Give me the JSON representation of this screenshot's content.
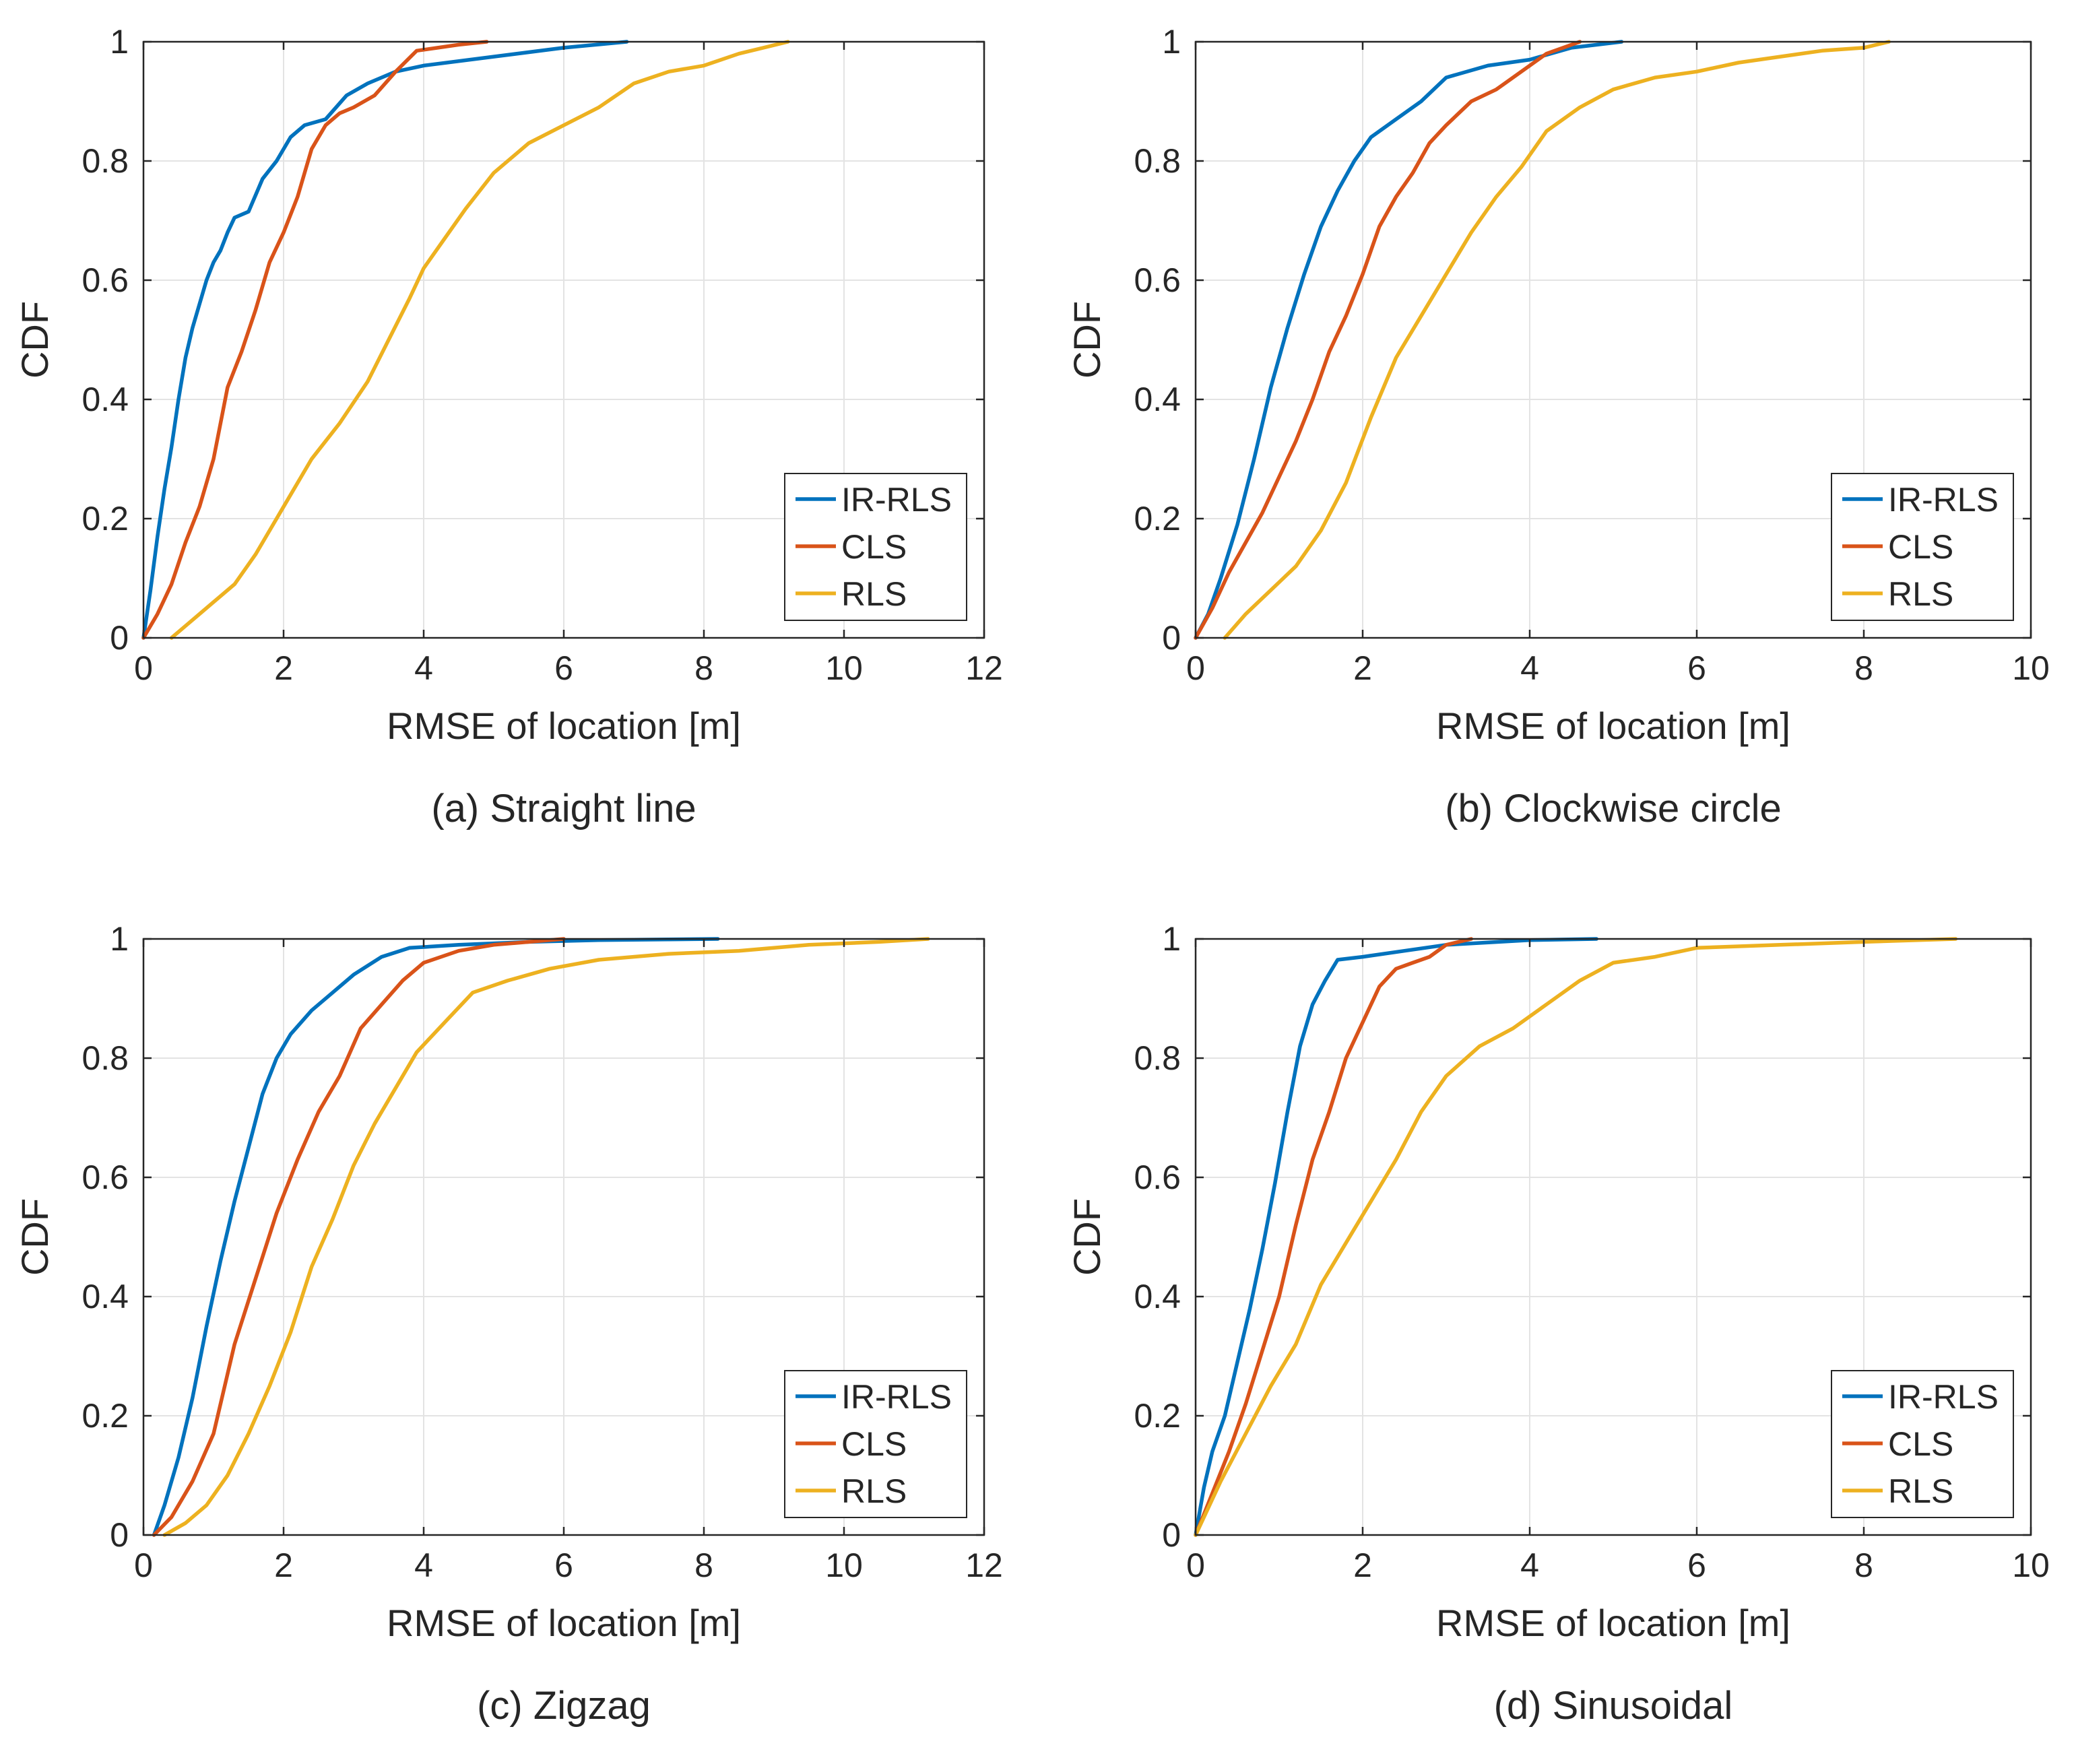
{
  "chart_data": [
    {
      "type": "line",
      "caption": "(a) Straight line",
      "xlabel": "RMSE of location [m]",
      "ylabel": "CDF",
      "xlim": [
        0,
        12
      ],
      "ylim": [
        0,
        1
      ],
      "xticks": [
        "0",
        "2",
        "4",
        "6",
        "8",
        "10",
        "12"
      ],
      "yticks": [
        "0",
        "0.2",
        "0.4",
        "0.6",
        "0.8",
        "1"
      ],
      "grid": true,
      "legend_position": "bottom-right",
      "series": [
        {
          "name": "IR-RLS",
          "color": "#0072BD",
          "x": [
            0,
            0.1,
            0.2,
            0.3,
            0.4,
            0.5,
            0.6,
            0.7,
            0.8,
            0.9,
            1.0,
            1.1,
            1.2,
            1.3,
            1.5,
            1.7,
            1.9,
            2.1,
            2.3,
            2.6,
            2.9,
            3.2,
            3.6,
            4.0,
            5.0,
            6.0,
            6.9
          ],
          "y": [
            0,
            0.08,
            0.17,
            0.25,
            0.32,
            0.4,
            0.47,
            0.52,
            0.56,
            0.6,
            0.63,
            0.65,
            0.68,
            0.705,
            0.715,
            0.77,
            0.8,
            0.84,
            0.86,
            0.87,
            0.91,
            0.93,
            0.95,
            0.96,
            0.975,
            0.99,
            1.0
          ]
        },
        {
          "name": "CLS",
          "color": "#D95319",
          "x": [
            0,
            0.2,
            0.4,
            0.6,
            0.8,
            1.0,
            1.2,
            1.4,
            1.6,
            1.8,
            2.0,
            2.2,
            2.4,
            2.6,
            2.8,
            3.0,
            3.3,
            3.6,
            3.9,
            4.2,
            4.5,
            4.9
          ],
          "y": [
            0,
            0.04,
            0.09,
            0.16,
            0.22,
            0.3,
            0.42,
            0.48,
            0.55,
            0.63,
            0.68,
            0.74,
            0.82,
            0.86,
            0.88,
            0.89,
            0.91,
            0.95,
            0.985,
            0.99,
            0.995,
            1.0
          ]
        },
        {
          "name": "RLS",
          "color": "#EDB120",
          "x": [
            0.4,
            0.6,
            0.8,
            1.0,
            1.3,
            1.6,
            2.0,
            2.4,
            2.8,
            3.2,
            3.5,
            3.8,
            4.0,
            4.3,
            4.6,
            5.0,
            5.5,
            6.0,
            6.5,
            7.0,
            7.5,
            8.0,
            8.5,
            9.2
          ],
          "y": [
            0,
            0.02,
            0.04,
            0.06,
            0.09,
            0.14,
            0.22,
            0.3,
            0.36,
            0.43,
            0.5,
            0.57,
            0.62,
            0.67,
            0.72,
            0.78,
            0.83,
            0.86,
            0.89,
            0.93,
            0.95,
            0.96,
            0.98,
            1.0
          ]
        }
      ],
      "legend": [
        "IR-RLS",
        "CLS",
        "RLS"
      ]
    },
    {
      "type": "line",
      "caption": "(b) Clockwise circle",
      "xlabel": "RMSE of location [m]",
      "ylabel": "CDF",
      "xlim": [
        0,
        10
      ],
      "ylim": [
        0,
        1
      ],
      "xticks": [
        "0",
        "2",
        "4",
        "6",
        "8",
        "10"
      ],
      "yticks": [
        "0",
        "0.2",
        "0.4",
        "0.6",
        "0.8",
        "1"
      ],
      "grid": true,
      "legend_position": "bottom-right",
      "series": [
        {
          "name": "IR-RLS",
          "color": "#0072BD",
          "x": [
            0,
            0.15,
            0.3,
            0.5,
            0.7,
            0.9,
            1.1,
            1.3,
            1.5,
            1.7,
            1.9,
            2.1,
            2.4,
            2.7,
            3.0,
            3.5,
            4.0,
            4.5,
            5.1
          ],
          "y": [
            0,
            0.04,
            0.1,
            0.19,
            0.3,
            0.42,
            0.52,
            0.61,
            0.69,
            0.75,
            0.8,
            0.84,
            0.87,
            0.9,
            0.94,
            0.96,
            0.97,
            0.99,
            1.0
          ]
        },
        {
          "name": "CLS",
          "color": "#D95319",
          "x": [
            0,
            0.2,
            0.4,
            0.6,
            0.8,
            1.0,
            1.2,
            1.4,
            1.6,
            1.8,
            2.0,
            2.2,
            2.4,
            2.6,
            2.8,
            3.0,
            3.3,
            3.6,
            3.9,
            4.2,
            4.6
          ],
          "y": [
            0,
            0.05,
            0.11,
            0.16,
            0.21,
            0.27,
            0.33,
            0.4,
            0.48,
            0.54,
            0.61,
            0.69,
            0.74,
            0.78,
            0.83,
            0.86,
            0.9,
            0.92,
            0.95,
            0.98,
            1.0
          ]
        },
        {
          "name": "RLS",
          "color": "#EDB120",
          "x": [
            0.35,
            0.6,
            0.9,
            1.2,
            1.5,
            1.8,
            2.1,
            2.4,
            2.7,
            3.0,
            3.3,
            3.6,
            3.9,
            4.2,
            4.6,
            5.0,
            5.5,
            6.0,
            6.5,
            7.0,
            7.5,
            8.0,
            8.3
          ],
          "y": [
            0,
            0.04,
            0.08,
            0.12,
            0.18,
            0.26,
            0.37,
            0.47,
            0.54,
            0.61,
            0.68,
            0.74,
            0.79,
            0.85,
            0.89,
            0.92,
            0.94,
            0.95,
            0.965,
            0.975,
            0.985,
            0.99,
            1.0
          ]
        }
      ],
      "legend": [
        "IR-RLS",
        "CLS",
        "RLS"
      ]
    },
    {
      "type": "line",
      "caption": "(c) Zigzag",
      "xlabel": "RMSE of location [m]",
      "ylabel": "CDF",
      "xlim": [
        0,
        12
      ],
      "ylim": [
        0,
        1
      ],
      "xticks": [
        "0",
        "2",
        "4",
        "6",
        "8",
        "10",
        "12"
      ],
      "yticks": [
        "0",
        "0.2",
        "0.4",
        "0.6",
        "0.8",
        "1"
      ],
      "grid": true,
      "legend_position": "bottom-right",
      "series": [
        {
          "name": "IR-RLS",
          "color": "#0072BD",
          "x": [
            0.15,
            0.3,
            0.5,
            0.7,
            0.9,
            1.1,
            1.3,
            1.5,
            1.7,
            1.9,
            2.1,
            2.4,
            2.7,
            3.0,
            3.4,
            3.8,
            4.5,
            5.5,
            6.5,
            8.2
          ],
          "y": [
            0,
            0.05,
            0.13,
            0.23,
            0.35,
            0.46,
            0.56,
            0.65,
            0.74,
            0.8,
            0.84,
            0.88,
            0.91,
            0.94,
            0.97,
            0.985,
            0.99,
            0.995,
            0.998,
            1.0
          ]
        },
        {
          "name": "CLS",
          "color": "#D95319",
          "x": [
            0.15,
            0.4,
            0.7,
            1.0,
            1.3,
            1.6,
            1.9,
            2.2,
            2.5,
            2.8,
            3.1,
            3.4,
            3.7,
            4.0,
            4.5,
            5.0,
            5.5,
            6.0
          ],
          "y": [
            0,
            0.03,
            0.09,
            0.17,
            0.32,
            0.43,
            0.54,
            0.63,
            0.71,
            0.77,
            0.85,
            0.89,
            0.93,
            0.96,
            0.98,
            0.99,
            0.995,
            1.0
          ]
        },
        {
          "name": "RLS",
          "color": "#EDB120",
          "x": [
            0.3,
            0.6,
            0.9,
            1.2,
            1.5,
            1.8,
            2.1,
            2.4,
            2.7,
            3.0,
            3.3,
            3.6,
            3.9,
            4.3,
            4.7,
            5.2,
            5.8,
            6.5,
            7.5,
            8.5,
            9.5,
            10.5,
            11.2
          ],
          "y": [
            0,
            0.02,
            0.05,
            0.1,
            0.17,
            0.25,
            0.34,
            0.45,
            0.53,
            0.62,
            0.69,
            0.75,
            0.81,
            0.86,
            0.91,
            0.93,
            0.95,
            0.965,
            0.975,
            0.98,
            0.99,
            0.995,
            1.0
          ]
        }
      ],
      "legend": [
        "IR-RLS",
        "CLS",
        "RLS"
      ]
    },
    {
      "type": "line",
      "caption": "(d) Sinusoidal",
      "xlabel": "RMSE of location [m]",
      "ylabel": "CDF",
      "xlim": [
        0,
        10
      ],
      "ylim": [
        0,
        1
      ],
      "xticks": [
        "0",
        "2",
        "4",
        "6",
        "8",
        "10"
      ],
      "yticks": [
        "0",
        "0.2",
        "0.4",
        "0.6",
        "0.8",
        "1"
      ],
      "grid": true,
      "legend_position": "bottom-right",
      "series": [
        {
          "name": "IR-RLS",
          "color": "#0072BD",
          "x": [
            0,
            0.1,
            0.2,
            0.35,
            0.5,
            0.65,
            0.8,
            0.95,
            1.1,
            1.25,
            1.4,
            1.55,
            1.7,
            2.0,
            2.5,
            3.0,
            4.0,
            4.8
          ],
          "y": [
            0,
            0.08,
            0.14,
            0.2,
            0.29,
            0.38,
            0.48,
            0.59,
            0.71,
            0.82,
            0.89,
            0.93,
            0.965,
            0.97,
            0.98,
            0.99,
            0.998,
            1.0
          ]
        },
        {
          "name": "CLS",
          "color": "#D95319",
          "x": [
            0,
            0.2,
            0.4,
            0.6,
            0.8,
            1.0,
            1.2,
            1.4,
            1.6,
            1.8,
            2.0,
            2.2,
            2.4,
            2.6,
            2.8,
            3.0,
            3.3
          ],
          "y": [
            0,
            0.07,
            0.14,
            0.22,
            0.31,
            0.4,
            0.52,
            0.63,
            0.71,
            0.8,
            0.86,
            0.92,
            0.95,
            0.96,
            0.97,
            0.99,
            1.0
          ]
        },
        {
          "name": "RLS",
          "color": "#EDB120",
          "x": [
            0,
            0.3,
            0.6,
            0.9,
            1.2,
            1.5,
            1.8,
            2.1,
            2.4,
            2.7,
            3.0,
            3.4,
            3.8,
            4.2,
            4.6,
            5.0,
            5.5,
            6.0,
            7.0,
            8.0,
            9.1
          ],
          "y": [
            0,
            0.09,
            0.17,
            0.25,
            0.32,
            0.42,
            0.49,
            0.56,
            0.63,
            0.71,
            0.77,
            0.82,
            0.85,
            0.89,
            0.93,
            0.96,
            0.97,
            0.985,
            0.99,
            0.995,
            1.0
          ]
        }
      ],
      "legend": [
        "IR-RLS",
        "CLS",
        "RLS"
      ]
    }
  ]
}
